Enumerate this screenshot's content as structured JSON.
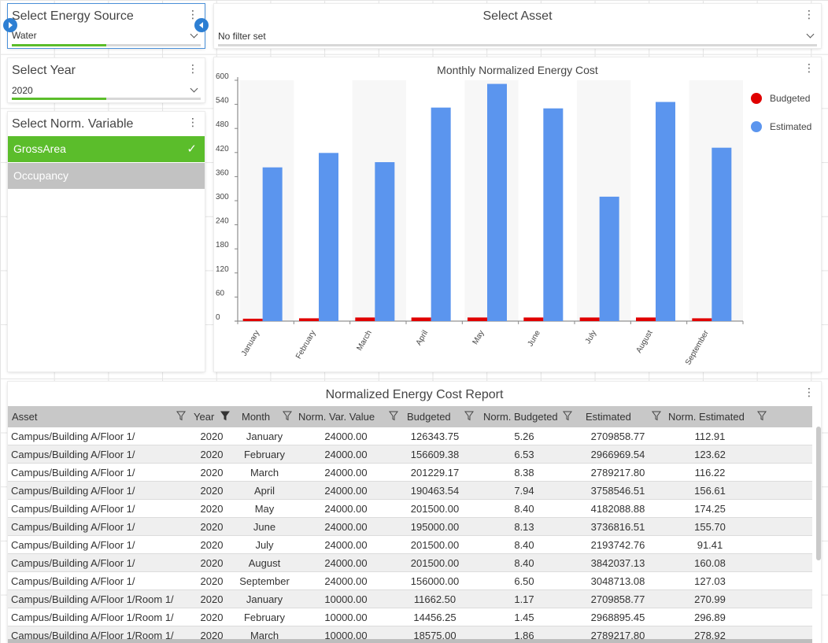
{
  "energy_source": {
    "title": "Select Energy Source",
    "value": "Water",
    "progress": 0.5
  },
  "asset": {
    "title": "Select Asset",
    "value": "No filter set"
  },
  "year": {
    "title": "Select Year",
    "value": "2020",
    "progress": 0.5
  },
  "norm_variable": {
    "title": "Select Norm. Variable",
    "items": [
      {
        "label": "GrossArea",
        "selected": true
      },
      {
        "label": "Occupancy",
        "selected": false
      }
    ]
  },
  "chart": {
    "title": "Monthly Normalized Energy Cost",
    "legend": [
      "Budgeted",
      "Estimated"
    ]
  },
  "chart_data": {
    "type": "bar",
    "title": "Monthly Normalized Energy Cost",
    "categories": [
      "January",
      "February",
      "March",
      "April",
      "May",
      "June",
      "July",
      "August",
      "September"
    ],
    "series": [
      {
        "name": "Budgeted",
        "color": "#e00000",
        "values": [
          6,
          7,
          9,
          9,
          9,
          9,
          9,
          9,
          7
        ]
      },
      {
        "name": "Estimated",
        "color": "#5b95ee",
        "values": [
          383,
          419,
          396,
          532,
          591,
          530,
          310,
          546,
          432
        ]
      }
    ],
    "yticks": [
      0,
      60,
      120,
      180,
      240,
      300,
      360,
      420,
      480,
      540,
      600
    ],
    "ylim": [
      0,
      600
    ],
    "legend_position": "right"
  },
  "report": {
    "title": "Normalized Energy Cost Report",
    "columns": [
      "Asset",
      "Year",
      "Month",
      "Norm. Var. Value",
      "Budgeted",
      "Norm. Budgeted",
      "Estimated",
      "Norm. Estimated"
    ],
    "rows": [
      [
        "Campus/Building A/Floor 1/",
        "2020",
        "January",
        "24000.00",
        "126343.75",
        "5.26",
        "2709858.77",
        "112.91"
      ],
      [
        "Campus/Building A/Floor 1/",
        "2020",
        "February",
        "24000.00",
        "156609.38",
        "6.53",
        "2966969.54",
        "123.62"
      ],
      [
        "Campus/Building A/Floor 1/",
        "2020",
        "March",
        "24000.00",
        "201229.17",
        "8.38",
        "2789217.80",
        "116.22"
      ],
      [
        "Campus/Building A/Floor 1/",
        "2020",
        "April",
        "24000.00",
        "190463.54",
        "7.94",
        "3758546.51",
        "156.61"
      ],
      [
        "Campus/Building A/Floor 1/",
        "2020",
        "May",
        "24000.00",
        "201500.00",
        "8.40",
        "4182088.88",
        "174.25"
      ],
      [
        "Campus/Building A/Floor 1/",
        "2020",
        "June",
        "24000.00",
        "195000.00",
        "8.13",
        "3736816.51",
        "155.70"
      ],
      [
        "Campus/Building A/Floor 1/",
        "2020",
        "July",
        "24000.00",
        "201500.00",
        "8.40",
        "2193742.76",
        "91.41"
      ],
      [
        "Campus/Building A/Floor 1/",
        "2020",
        "August",
        "24000.00",
        "201500.00",
        "8.40",
        "3842037.13",
        "160.08"
      ],
      [
        "Campus/Building A/Floor 1/",
        "2020",
        "September",
        "24000.00",
        "156000.00",
        "6.50",
        "3048713.08",
        "127.03"
      ],
      [
        "Campus/Building A/Floor 1/Room 1/",
        "2020",
        "January",
        "10000.00",
        "11662.50",
        "1.17",
        "2709858.77",
        "270.99"
      ],
      [
        "Campus/Building A/Floor 1/Room 1/",
        "2020",
        "February",
        "10000.00",
        "14456.25",
        "1.45",
        "2968895.45",
        "296.89"
      ],
      [
        "Campus/Building A/Floor 1/Room 1/",
        "2020",
        "March",
        "10000.00",
        "18575.00",
        "1.86",
        "2789217.80",
        "278.92"
      ]
    ]
  }
}
